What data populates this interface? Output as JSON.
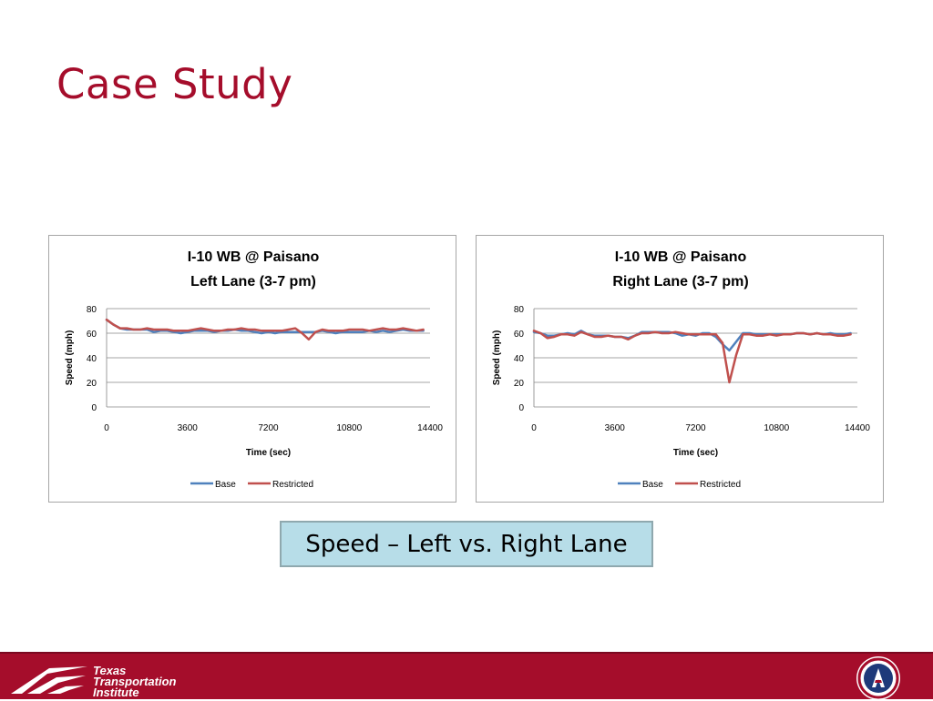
{
  "slide": {
    "title": "Case Study",
    "caption": "Speed – Left vs. Right Lane"
  },
  "footer": {
    "logo_lines": [
      "Texas",
      "Transportation",
      "Institute"
    ],
    "colors": {
      "banner": "#a50d2b",
      "text": "#ffffff"
    }
  },
  "chart_data": [
    {
      "type": "line",
      "title": [
        "I-10 WB @ Paisano",
        "Left Lane (3-7 pm)"
      ],
      "xlabel": "Time (sec)",
      "ylabel": "Speed (mph)",
      "xlim": [
        0,
        14400
      ],
      "ylim": [
        0,
        80
      ],
      "xticks": [
        0,
        3600,
        7200,
        10800,
        14400
      ],
      "yticks": [
        0,
        20,
        40,
        60,
        80
      ],
      "grid": "horizontal",
      "legend": "bottom",
      "series": [
        {
          "name": "Base",
          "color": "#4f81bd",
          "x": [
            0,
            300,
            600,
            900,
            1200,
            1500,
            1800,
            2100,
            2400,
            2700,
            3000,
            3300,
            3600,
            3900,
            4200,
            4500,
            4800,
            5100,
            5400,
            5700,
            6000,
            6300,
            6600,
            6900,
            7200,
            7500,
            7800,
            8100,
            8400,
            8700,
            9000,
            9300,
            9600,
            9900,
            10200,
            10500,
            10800,
            11100,
            11400,
            11700,
            12000,
            12300,
            12600,
            12900,
            13200,
            13500,
            13800,
            14100
          ],
          "values": [
            71,
            67,
            64,
            63,
            63,
            63,
            63,
            61,
            62,
            62,
            61,
            60,
            61,
            62,
            62,
            62,
            61,
            62,
            62,
            63,
            62,
            62,
            61,
            60,
            61,
            60,
            61,
            61,
            61,
            61,
            61,
            61,
            62,
            61,
            60,
            61,
            61,
            61,
            61,
            62,
            61,
            62,
            61,
            62,
            63,
            62,
            62,
            62
          ]
        },
        {
          "name": "Restricted",
          "color": "#c0504d",
          "x": [
            0,
            300,
            600,
            900,
            1200,
            1500,
            1800,
            2100,
            2400,
            2700,
            3000,
            3300,
            3600,
            3900,
            4200,
            4500,
            4800,
            5100,
            5400,
            5700,
            6000,
            6300,
            6600,
            6900,
            7200,
            7500,
            7800,
            8100,
            8400,
            8700,
            9000,
            9300,
            9600,
            9900,
            10200,
            10500,
            10800,
            11100,
            11400,
            11700,
            12000,
            12300,
            12600,
            12900,
            13200,
            13500,
            13800,
            14100
          ],
          "values": [
            71,
            67,
            64,
            64,
            63,
            63,
            64,
            63,
            63,
            63,
            62,
            62,
            62,
            63,
            64,
            63,
            62,
            62,
            63,
            63,
            64,
            63,
            63,
            62,
            62,
            62,
            62,
            63,
            64,
            60,
            55,
            61,
            63,
            62,
            62,
            62,
            63,
            63,
            63,
            62,
            63,
            64,
            63,
            63,
            64,
            63,
            62,
            63
          ]
        }
      ]
    },
    {
      "type": "line",
      "title": [
        "I-10 WB @ Paisano",
        "Right Lane (3-7 pm)"
      ],
      "xlabel": "Time (sec)",
      "ylabel": "Speed (mph)",
      "xlim": [
        0,
        14400
      ],
      "ylim": [
        0,
        80
      ],
      "xticks": [
        0,
        3600,
        7200,
        10800,
        14400
      ],
      "yticks": [
        0,
        20,
        40,
        60,
        80
      ],
      "grid": "horizontal",
      "legend": "bottom",
      "series": [
        {
          "name": "Base",
          "color": "#4f81bd",
          "x": [
            0,
            300,
            600,
            900,
            1200,
            1500,
            1800,
            2100,
            2400,
            2700,
            3000,
            3300,
            3600,
            3900,
            4200,
            4500,
            4800,
            5100,
            5400,
            5700,
            6000,
            6300,
            6600,
            6900,
            7200,
            7500,
            7800,
            8100,
            8400,
            8700,
            9000,
            9300,
            9600,
            9900,
            10200,
            10500,
            10800,
            11100,
            11400,
            11700,
            12000,
            12300,
            12600,
            12900,
            13200,
            13500,
            13800,
            14100
          ],
          "values": [
            61,
            60,
            58,
            58,
            59,
            60,
            59,
            62,
            59,
            58,
            58,
            58,
            57,
            57,
            56,
            58,
            61,
            61,
            61,
            61,
            61,
            60,
            58,
            59,
            58,
            60,
            60,
            57,
            51,
            46,
            53,
            60,
            60,
            59,
            59,
            59,
            59,
            59,
            59,
            60,
            60,
            59,
            60,
            59,
            60,
            59,
            59,
            60
          ]
        },
        {
          "name": "Restricted",
          "color": "#c0504d",
          "x": [
            0,
            300,
            600,
            900,
            1200,
            1500,
            1800,
            2100,
            2400,
            2700,
            3000,
            3300,
            3600,
            3900,
            4200,
            4500,
            4800,
            5100,
            5400,
            5700,
            6000,
            6300,
            6600,
            6900,
            7200,
            7500,
            7800,
            8100,
            8400,
            8700,
            9000,
            9300,
            9600,
            9900,
            10200,
            10500,
            10800,
            11100,
            11400,
            11700,
            12000,
            12300,
            12600,
            12900,
            13200,
            13500,
            13800,
            14100
          ],
          "values": [
            62,
            60,
            56,
            57,
            59,
            59,
            58,
            61,
            59,
            57,
            57,
            58,
            57,
            57,
            55,
            58,
            60,
            60,
            61,
            60,
            60,
            61,
            60,
            59,
            59,
            59,
            59,
            59,
            52,
            20,
            42,
            59,
            59,
            58,
            58,
            59,
            58,
            59,
            59,
            60,
            60,
            59,
            60,
            59,
            59,
            58,
            58,
            59
          ]
        }
      ]
    }
  ]
}
